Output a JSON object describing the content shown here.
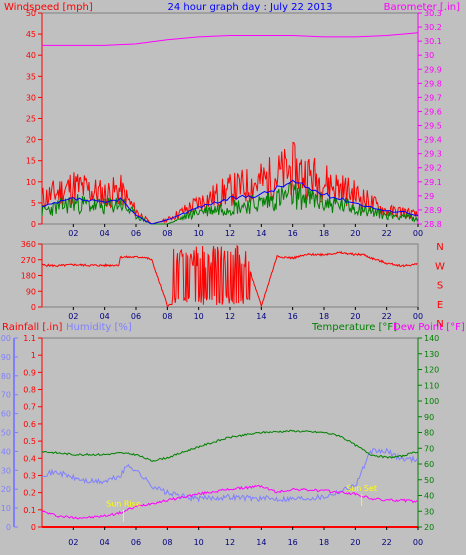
{
  "title": "24 hour graph day : July 22 2013",
  "colors": {
    "background": "#c0c0c0",
    "plot": "#c0c0c0",
    "wind": "#ff0000",
    "gust": "#008000",
    "avg": "#0000ff",
    "barometer": "#ff00ff",
    "winddir": "#ff0000",
    "rain": "#ff0000",
    "humidity": "#8080ff",
    "temperature": "#008000",
    "dewpoint": "#ff00ff",
    "sunmarker": "#ffff00",
    "title": "#0000ff"
  },
  "chart_data": [
    {
      "type": "line",
      "ylabel": "Windspeed [mph]",
      "y2label": "Barometer [.in]",
      "x_ticks": [
        "02",
        "04",
        "06",
        "08",
        "10",
        "12",
        "14",
        "16",
        "18",
        "20",
        "22",
        "00"
      ],
      "ylim": [
        0,
        50
      ],
      "y_ticks": [
        "0",
        "5",
        "10",
        "15",
        "20",
        "25",
        "30",
        "35",
        "40",
        "45",
        "50"
      ],
      "y2lim": [
        28.8,
        30.3
      ],
      "y2_ticks": [
        "28.8",
        "28.9",
        "29",
        "29.1",
        "29.2",
        "29.3",
        "29.4",
        "29.5",
        "29.6",
        "29.7",
        "29.8",
        "29.9",
        "30",
        "30.1",
        "30.2",
        "30.3"
      ],
      "series": [
        {
          "x": [
            0,
            2,
            4,
            5,
            6,
            7,
            8,
            10,
            12,
            14,
            16,
            18,
            20,
            22,
            23,
            24
          ],
          "values": [
            6,
            9,
            7,
            8,
            3,
            0,
            1,
            5,
            8,
            10,
            13,
            10,
            7,
            3,
            3,
            2
          ]
        },
        {
          "x": [
            0,
            2,
            4,
            5,
            6,
            7,
            8,
            10,
            12,
            14,
            16,
            18,
            20,
            22,
            23,
            24
          ],
          "values": [
            3,
            5,
            4,
            5,
            2,
            0,
            0,
            3,
            4,
            5,
            7,
            5,
            4,
            2,
            2,
            1
          ]
        },
        {
          "x": [
            0,
            2,
            4,
            5,
            6,
            7,
            8,
            10,
            12,
            14,
            16,
            18,
            20,
            22,
            23,
            24
          ],
          "values": [
            4,
            6,
            5,
            6,
            2,
            0,
            1,
            4,
            6,
            7,
            10,
            7,
            5,
            3,
            3,
            2
          ]
        },
        {
          "x": [
            0,
            2,
            4,
            6,
            8,
            10,
            12,
            14,
            16,
            18,
            20,
            22,
            24
          ],
          "values": [
            30.07,
            30.07,
            30.07,
            30.08,
            30.11,
            30.13,
            30.14,
            30.14,
            30.14,
            30.13,
            30.13,
            30.14,
            30.16
          ]
        }
      ]
    },
    {
      "type": "line",
      "x_ticks": [
        "02",
        "04",
        "06",
        "08",
        "10",
        "12",
        "14",
        "16",
        "18",
        "20",
        "22",
        "00"
      ],
      "ylim": [
        0,
        360
      ],
      "y_ticks": [
        "0",
        "90",
        "180",
        "270",
        "360"
      ],
      "compass": [
        "N",
        "W",
        "S",
        "E",
        "N"
      ],
      "series": [
        {
          "x": [
            0,
            1,
            2,
            3,
            4,
            4.9,
            5,
            6,
            6.5,
            7,
            8,
            9,
            10,
            11,
            12,
            13,
            14,
            15,
            16,
            17,
            18,
            19,
            20,
            20.5,
            21,
            22,
            23,
            24
          ],
          "values": [
            240,
            235,
            242,
            238,
            238,
            240,
            285,
            285,
            285,
            270,
            10,
            20,
            10,
            0,
            5,
            280,
            5,
            290,
            280,
            300,
            300,
            310,
            300,
            300,
            280,
            250,
            235,
            245
          ]
        }
      ]
    },
    {
      "type": "line",
      "ylabel": "Rainfall [.in]",
      "ylabel2": "Humidity [%]",
      "y2label": "Temperature [°F]",
      "y2label2": "Dew Point [°F]",
      "x_ticks": [
        "02",
        "04",
        "06",
        "08",
        "10",
        "12",
        "14",
        "16",
        "18",
        "20",
        "22",
        "00"
      ],
      "rain_lim": [
        0,
        1.1
      ],
      "rain_ticks": [
        "0",
        "0.1",
        "0.2",
        "0.3",
        "0.4",
        "0.5",
        "0.6",
        "0.7",
        "0.8",
        "0.9",
        "1",
        "1.1"
      ],
      "hum_lim": [
        0,
        100
      ],
      "hum_ticks": [
        "0",
        "10",
        "20",
        "30",
        "40",
        "50",
        "60",
        "70",
        "80",
        "90",
        "100"
      ],
      "temp_lim": [
        20,
        140
      ],
      "temp_ticks": [
        "20",
        "30",
        "40",
        "50",
        "60",
        "70",
        "80",
        "90",
        "100",
        "110",
        "120",
        "130",
        "140"
      ],
      "sun_markers": [
        "Sun Rise",
        "Sun Set"
      ],
      "sun_times": [
        5.2,
        20.4
      ],
      "series": [
        {
          "x": [
            0,
            24
          ],
          "values": [
            0,
            0
          ]
        },
        {
          "x": [
            0,
            1,
            2,
            3,
            4,
            5,
            5.5,
            6,
            7,
            8,
            9,
            10,
            12,
            14,
            16,
            18,
            20,
            21,
            22,
            23,
            24
          ],
          "values": [
            28,
            29,
            26,
            24,
            24,
            27,
            33,
            30,
            22,
            18,
            16,
            15,
            16,
            15,
            15,
            16,
            22,
            40,
            40,
            36,
            36
          ]
        },
        {
          "x": [
            0,
            1,
            2,
            3,
            4,
            5,
            6,
            7,
            8,
            10,
            12,
            14,
            16,
            18,
            19,
            20,
            21,
            22,
            23,
            24
          ],
          "values": [
            68,
            67,
            66,
            66,
            66,
            67,
            66,
            62,
            64,
            71,
            77,
            80,
            81,
            80,
            78,
            72,
            66,
            64,
            65,
            68
          ]
        },
        {
          "x": [
            0,
            1,
            2,
            3,
            4,
            5,
            6,
            7,
            8,
            10,
            12,
            14,
            15,
            16,
            18,
            19,
            20,
            21,
            22,
            23,
            24
          ],
          "values": [
            30,
            27,
            26,
            26,
            27,
            29,
            33,
            35,
            37,
            41,
            44,
            46,
            42,
            44,
            43,
            42,
            41,
            38,
            37,
            37,
            36
          ]
        }
      ]
    }
  ]
}
